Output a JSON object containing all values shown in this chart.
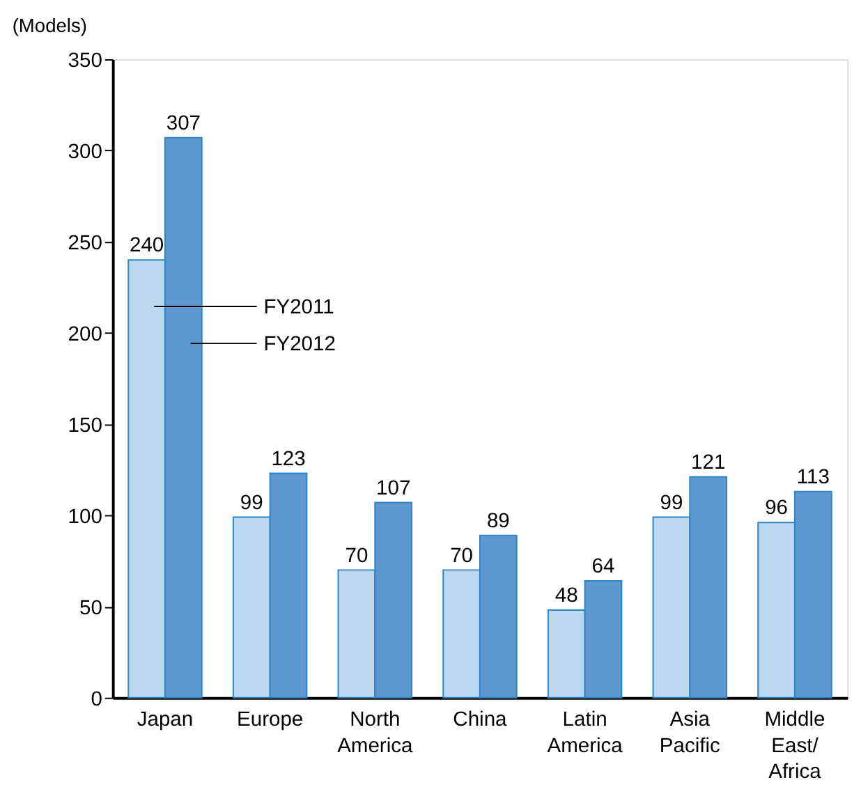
{
  "chart_data": {
    "type": "bar",
    "ylabel": "(Models)",
    "categories": [
      "Japan",
      "Europe",
      "North America",
      "China",
      "Latin America",
      "Asia Pacific",
      "Middle East/Africa"
    ],
    "series": [
      {
        "name": "FY2011",
        "color": "#bcd8f1",
        "values": [
          240,
          99,
          70,
          70,
          48,
          99,
          96
        ]
      },
      {
        "name": "FY2012",
        "color": "#5f97d1",
        "values": [
          307,
          123,
          107,
          89,
          64,
          121,
          113
        ]
      }
    ],
    "ylim": [
      0,
      350
    ],
    "yticks": [
      0,
      50,
      100,
      150,
      200,
      250,
      300,
      350
    ],
    "data_labels": true,
    "grid": false,
    "legend": false
  }
}
